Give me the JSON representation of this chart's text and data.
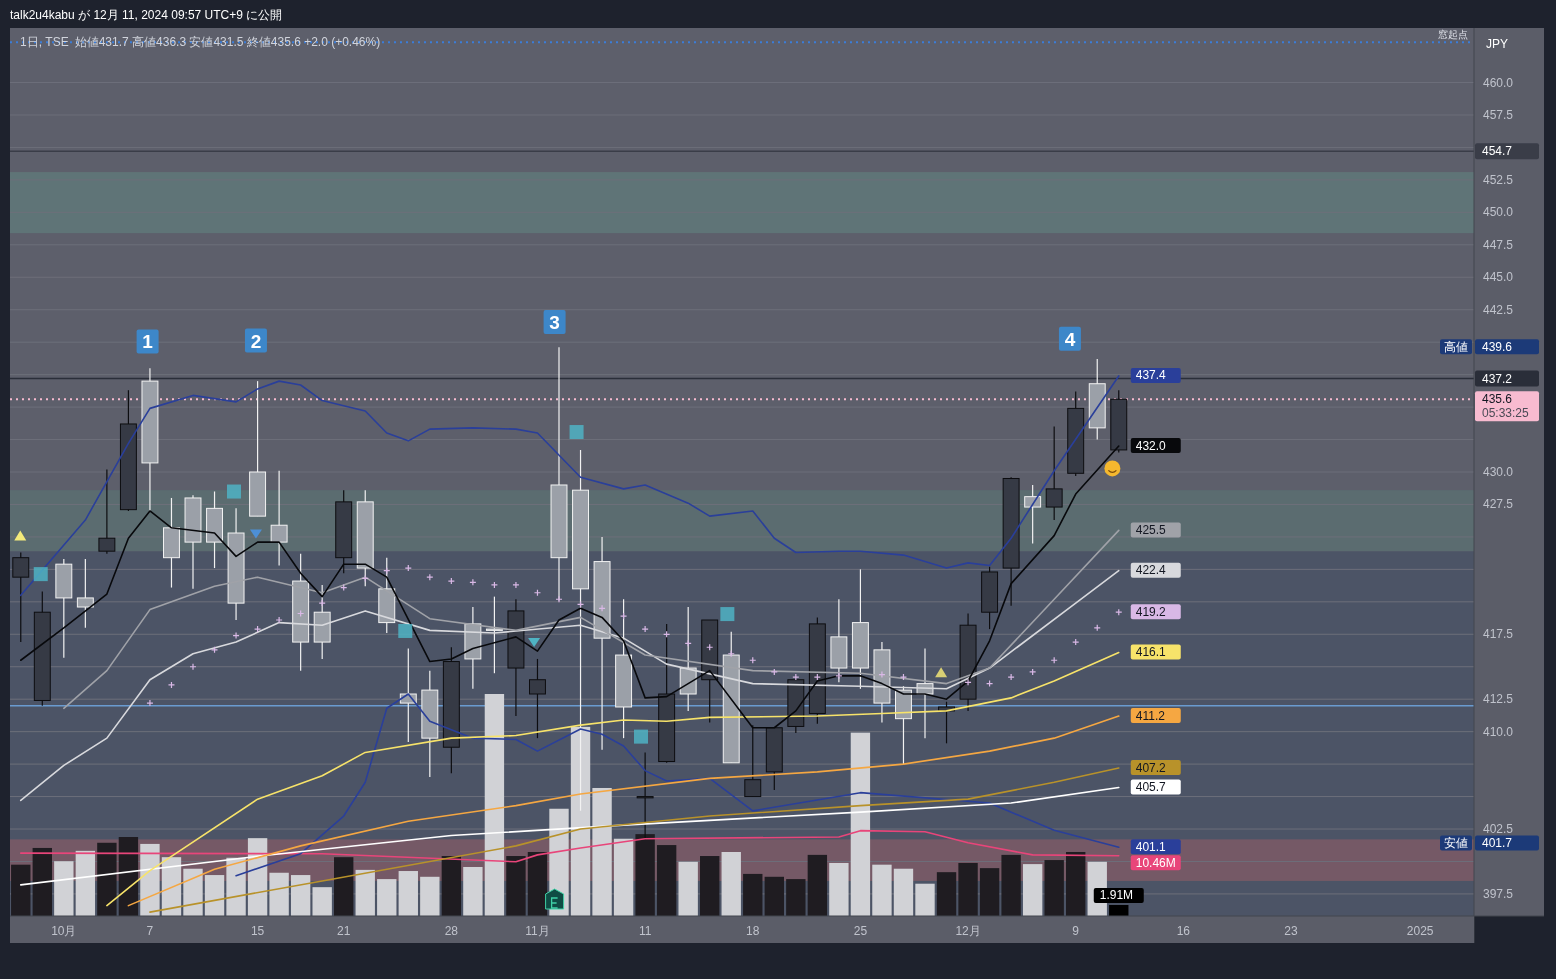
{
  "chart_data": {
    "type": "candlestick",
    "title": "1日, TSE",
    "subtitle": "始値431.7 高値436.3 安値431.5 終値435.6 +2.0 (+0.46%)",
    "categories": [
      null,
      null,
      "10月",
      null,
      null,
      null,
      "7",
      null,
      null,
      null,
      null,
      "15",
      null,
      null,
      null,
      "21",
      null,
      null,
      null,
      null,
      "28",
      null,
      null,
      null,
      "11月",
      null,
      null,
      null,
      null,
      "11",
      null,
      null,
      null,
      null,
      "18",
      null,
      null,
      null,
      null,
      "25",
      null,
      null,
      null,
      null,
      "12月",
      null,
      null,
      null,
      null,
      "9",
      null,
      null,
      null,
      null,
      "16",
      null,
      null,
      null,
      null,
      "23",
      null,
      null,
      null,
      null,
      null,
      "2025",
      null,
      null
    ],
    "ohlc": [
      [
        421.9,
        423.8,
        416.9,
        423.4
      ],
      [
        412.4,
        420.8,
        412.0,
        419.2
      ],
      [
        422.9,
        423.3,
        415.7,
        420.3
      ],
      [
        420.3,
        423.3,
        418.0,
        419.6
      ],
      [
        423.9,
        430.2,
        423.7,
        424.9
      ],
      [
        427.1,
        436.3,
        427.0,
        433.7
      ],
      [
        437.0,
        438.0,
        427.0,
        430.7
      ],
      [
        425.7,
        428.0,
        421.1,
        423.4
      ],
      [
        428.0,
        428.2,
        421.0,
        424.6
      ],
      [
        427.2,
        428.5,
        422.6,
        424.6
      ],
      [
        425.3,
        427.2,
        418.6,
        419.9
      ],
      [
        430.0,
        437.0,
        426.6,
        426.6
      ],
      [
        425.9,
        430.1,
        422.8,
        424.6
      ],
      [
        421.6,
        423.7,
        414.7,
        416.9
      ],
      [
        419.2,
        421.3,
        415.6,
        416.9
      ],
      [
        423.4,
        428.6,
        422.2,
        427.7
      ],
      [
        427.7,
        428.6,
        421.2,
        422.6
      ],
      [
        421.0,
        423.4,
        417.6,
        418.4
      ],
      [
        412.9,
        416.4,
        409.2,
        412.2
      ],
      [
        413.2,
        414.7,
        406.5,
        409.5
      ],
      [
        408.8,
        416.5,
        406.8,
        415.4
      ],
      [
        418.3,
        419.6,
        413.3,
        415.6
      ],
      [
        417.9,
        420.4,
        414.5,
        417.8
      ],
      [
        414.9,
        420.2,
        411.2,
        419.3
      ],
      [
        412.9,
        415.6,
        409.5,
        414.0
      ],
      [
        429.0,
        439.6,
        420.1,
        423.4
      ],
      [
        428.6,
        431.7,
        403.9,
        421.0
      ],
      [
        423.1,
        425.0,
        408.6,
        417.2
      ],
      [
        415.9,
        420.2,
        409.5,
        411.9
      ],
      [
        404.9,
        408.4,
        401.7,
        405.0
      ],
      [
        407.7,
        418.3,
        407.6,
        412.9
      ],
      [
        414.9,
        419.6,
        411.6,
        412.9
      ],
      [
        414.0,
        418.6,
        410.7,
        418.6
      ],
      [
        415.9,
        417.7,
        407.6,
        407.6
      ],
      [
        405.0,
        410.5,
        405.0,
        406.3
      ],
      [
        406.9,
        410.3,
        405.5,
        410.3
      ],
      [
        410.4,
        414.0,
        409.9,
        414.0
      ],
      [
        411.4,
        418.8,
        410.6,
        418.3
      ],
      [
        417.3,
        420.2,
        413.8,
        414.9
      ],
      [
        418.4,
        422.5,
        413.3,
        414.9
      ],
      [
        416.3,
        416.9,
        410.7,
        412.2
      ],
      [
        413.2,
        413.5,
        407.5,
        411.0
      ],
      [
        413.7,
        416.4,
        409.5,
        412.9
      ],
      [
        411.6,
        412.3,
        409.1,
        411.9
      ],
      [
        412.5,
        419.1,
        411.6,
        418.2
      ],
      [
        419.2,
        422.7,
        417.9,
        422.3
      ],
      [
        422.6,
        429.6,
        419.7,
        429.5
      ],
      [
        428.1,
        429.0,
        424.5,
        427.3
      ],
      [
        427.3,
        433.5,
        426.3,
        428.7
      ],
      [
        429.9,
        436.2,
        429.7,
        434.9
      ],
      [
        436.8,
        438.7,
        432.5,
        433.4
      ],
      [
        431.7,
        436.3,
        431.5,
        435.6
      ],
      null,
      null,
      null,
      null,
      null,
      null,
      null,
      null,
      null,
      null,
      null,
      null,
      null,
      null,
      null,
      null
    ],
    "series": [
      {
        "type": "bar",
        "axis": "y2",
        "values": [
          8.9,
          11.8,
          9.5,
          11.3,
          12.7,
          13.7,
          12.5,
          10.2,
          8.2,
          7.1,
          10.1,
          13.5,
          7.5,
          7.1,
          5.0,
          10.2,
          8.0,
          6.4,
          7.8,
          6.8,
          10.4,
          8.5,
          38.5,
          10.4,
          11.1,
          18.6,
          32.8,
          22.2,
          13.4,
          14.2,
          12.3,
          9.4,
          10.4,
          11.1,
          7.3,
          6.8,
          6.4,
          10.6,
          9.2,
          31.8,
          8.9,
          8.2,
          5.6,
          7.6,
          9.2,
          8.3,
          10.6,
          9.0,
          9.7,
          11.1,
          9.4,
          1.91,
          null,
          null,
          null,
          null,
          null,
          null,
          null,
          null,
          null,
          null,
          null,
          null,
          null,
          null,
          null,
          null
        ],
        "colors": [
          "#1f1c21",
          "#1f1c21",
          "#d1d2d6",
          "#d1d2d6",
          "#1f1c21",
          "#1f1c21",
          "#d1d2d6",
          "#d1d2d6",
          "#d1d2d6",
          "#d1d2d6",
          "#d1d2d6",
          "#d1d2d6",
          "#d1d2d6",
          "#d1d2d6",
          "#d1d2d6",
          "#1f1c21",
          "#d1d2d6",
          "#d1d2d6",
          "#d1d2d6",
          "#d1d2d6",
          "#1f1c21",
          "#d1d2d6",
          "#d1d2d6",
          "#1f1c21",
          "#1f1c21",
          "#d1d2d6",
          "#d1d2d6",
          "#d1d2d6",
          "#d1d2d6",
          "#1f1c21",
          "#1f1c21",
          "#d1d2d6",
          "#1f1c21",
          "#d1d2d6",
          "#1f1c21",
          "#1f1c21",
          "#1f1c21",
          "#1f1c21",
          "#d1d2d6",
          "#d1d2d6",
          "#d1d2d6",
          "#d1d2d6",
          "#d1d2d6",
          "#1f1c21",
          "#1f1c21",
          "#1f1c21",
          "#1f1c21",
          "#d1d2d6",
          "#1f1c21",
          "#1f1c21",
          "#d1d2d6",
          "#000000",
          null,
          null,
          null,
          null,
          null,
          null,
          null,
          null,
          null,
          null,
          null,
          null,
          null,
          null,
          null,
          null
        ],
        "value_labels": [
          null,
          null,
          null,
          null,
          null,
          null,
          null,
          null,
          null,
          null,
          null,
          null,
          null,
          null,
          null,
          null,
          null,
          null,
          null,
          null,
          null,
          null,
          null,
          null,
          null,
          null,
          null,
          null,
          null,
          null,
          null,
          null,
          null,
          null,
          null,
          null,
          null,
          null,
          null,
          null,
          null,
          null,
          null,
          null,
          null,
          null,
          null,
          null,
          null,
          null,
          null,
          "1.91M",
          null,
          null,
          null,
          null,
          null,
          null,
          null,
          null,
          null,
          null,
          null,
          null,
          null,
          null,
          null,
          null
        ]
      },
      {
        "type": "line",
        "axis": "y2",
        "color": "#e8457a",
        "values": [
          10.9,
          null,
          null,
          null,
          null,
          null,
          null,
          null,
          null,
          null,
          null,
          null,
          null,
          null,
          10.8,
          null,
          null,
          null,
          null,
          null,
          null,
          null,
          null,
          9.4,
          10.6,
          null,
          11.8,
          null,
          null,
          13.4,
          null,
          null,
          null,
          null,
          null,
          null,
          null,
          null,
          13.7,
          14.8,
          null,
          null,
          14.6,
          null,
          12.7,
          null,
          null,
          10.6,
          null,
          null,
          null,
          10.46,
          null,
          null,
          null,
          null,
          null,
          null,
          null,
          null,
          null,
          null,
          null,
          null,
          null,
          null,
          null,
          null
        ],
        "value_labels": [
          null,
          null,
          null,
          null,
          null,
          null,
          null,
          null,
          null,
          null,
          null,
          null,
          null,
          null,
          null,
          null,
          null,
          null,
          null,
          null,
          null,
          null,
          null,
          null,
          null,
          null,
          null,
          null,
          null,
          null,
          null,
          null,
          null,
          null,
          null,
          null,
          null,
          null,
          null,
          null,
          null,
          null,
          null,
          null,
          null,
          null,
          null,
          null,
          null,
          null,
          null,
          "10.46M",
          null,
          null,
          null,
          null,
          null,
          null,
          null,
          null,
          null,
          null,
          null,
          null,
          null,
          null,
          null,
          null
        ]
      },
      {
        "type": "line",
        "color": "#2a3f9a",
        "values": [
          420.5,
          null,
          null,
          426.3,
          null,
          432.2,
          434.9,
          null,
          435.9,
          null,
          435.4,
          436.4,
          437.0,
          436.7,
          435.5,
          null,
          434.7,
          433.0,
          432.4,
          433.3,
          null,
          433.4,
          null,
          433.3,
          433.0,
          null,
          429.6,
          null,
          428.7,
          429.0,
          null,
          427.6,
          426.6,
          null,
          427.0,
          424.9,
          423.8,
          null,
          423.9,
          423.9,
          null,
          423.6,
          null,
          422.6,
          423.0,
          422.8,
          424.9,
          null,
          430.1,
          null,
          null,
          437.4,
          null,
          null,
          null,
          null,
          null,
          null,
          null,
          null,
          null,
          null,
          null,
          null,
          null,
          null,
          null,
          null
        ],
        "value_labels": [
          null,
          null,
          null,
          null,
          null,
          null,
          null,
          null,
          null,
          null,
          null,
          null,
          null,
          null,
          null,
          null,
          null,
          null,
          null,
          null,
          null,
          null,
          null,
          null,
          null,
          null,
          null,
          null,
          null,
          null,
          null,
          null,
          null,
          null,
          null,
          null,
          null,
          null,
          null,
          null,
          null,
          null,
          null,
          null,
          null,
          null,
          null,
          null,
          null,
          null,
          null,
          "437.4",
          null,
          null,
          null,
          null,
          null,
          null,
          null,
          null,
          null,
          null,
          null,
          null,
          null,
          null,
          null,
          null
        ]
      },
      {
        "type": "line",
        "color": "#2a3f9a",
        "values": [
          null,
          null,
          null,
          null,
          null,
          null,
          null,
          null,
          null,
          null,
          398.9,
          null,
          null,
          400.6,
          null,
          403.5,
          406.1,
          411.8,
          412.9,
          410.8,
          null,
          409.5,
          null,
          409.4,
          408.5,
          null,
          410.2,
          409.8,
          408.9,
          407.0,
          406.2,
          null,
          406.4,
          null,
          403.9,
          null,
          null,
          null,
          null,
          405.3,
          null,
          null,
          null,
          null,
          null,
          404.5,
          null,
          null,
          402.4,
          null,
          null,
          401.1,
          null,
          null,
          null,
          null,
          null,
          null,
          null,
          null,
          null,
          null,
          null,
          null,
          null,
          null,
          null,
          null
        ],
        "value_labels": [
          null,
          null,
          null,
          null,
          null,
          null,
          null,
          null,
          null,
          null,
          null,
          null,
          null,
          null,
          null,
          null,
          null,
          null,
          null,
          null,
          null,
          null,
          null,
          null,
          null,
          null,
          null,
          null,
          null,
          null,
          null,
          null,
          null,
          null,
          null,
          null,
          null,
          null,
          null,
          null,
          null,
          null,
          null,
          null,
          null,
          null,
          null,
          null,
          null,
          null,
          null,
          "401.1",
          null,
          null,
          null,
          null,
          null,
          null,
          null,
          null,
          null,
          null,
          null,
          null,
          null,
          null,
          null,
          null
        ]
      },
      {
        "type": "line",
        "color": "#ffffff",
        "values": [
          398.2,
          null,
          null,
          null,
          null,
          null,
          null,
          null,
          null,
          null,
          null,
          400.4,
          null,
          null,
          null,
          null,
          null,
          null,
          null,
          null,
          402.0,
          null,
          null,
          null,
          null,
          null,
          null,
          null,
          402.8,
          null,
          null,
          null,
          null,
          null,
          null,
          null,
          null,
          null,
          null,
          403.8,
          null,
          null,
          null,
          null,
          null,
          null,
          404.5,
          null,
          null,
          null,
          null,
          405.7,
          null,
          null,
          null,
          null,
          null,
          null,
          null,
          null,
          null,
          null,
          null,
          null,
          null,
          null,
          null,
          null
        ],
        "value_labels": [
          null,
          null,
          null,
          null,
          null,
          null,
          null,
          null,
          null,
          null,
          null,
          null,
          null,
          null,
          null,
          null,
          null,
          null,
          null,
          null,
          null,
          null,
          null,
          null,
          null,
          null,
          null,
          null,
          null,
          null,
          null,
          null,
          null,
          null,
          null,
          null,
          null,
          null,
          null,
          null,
          null,
          null,
          null,
          null,
          null,
          null,
          null,
          null,
          null,
          null,
          null,
          "405.7",
          null,
          null,
          null,
          null,
          null,
          null,
          null,
          null,
          null,
          null,
          null,
          null,
          null,
          null,
          null,
          null
        ]
      },
      {
        "type": "line",
        "color": "#b8922a",
        "values": [
          null,
          null,
          null,
          null,
          null,
          null,
          396.1,
          null,
          null,
          null,
          null,
          null,
          null,
          null,
          398.5,
          null,
          null,
          null,
          null,
          null,
          null,
          null,
          null,
          401.2,
          null,
          null,
          402.5,
          null,
          null,
          null,
          null,
          null,
          403.5,
          null,
          null,
          null,
          null,
          null,
          null,
          404.3,
          null,
          null,
          null,
          null,
          404.8,
          null,
          null,
          null,
          406.1,
          null,
          null,
          407.2,
          null,
          null,
          null,
          null,
          null,
          null,
          null,
          null,
          null,
          null,
          null,
          null,
          null,
          null,
          null,
          null
        ],
        "value_labels": [
          null,
          null,
          null,
          null,
          null,
          null,
          null,
          null,
          null,
          null,
          null,
          null,
          null,
          null,
          null,
          null,
          null,
          null,
          null,
          null,
          null,
          null,
          null,
          null,
          null,
          null,
          null,
          null,
          null,
          null,
          null,
          null,
          null,
          null,
          null,
          null,
          null,
          null,
          null,
          null,
          null,
          null,
          null,
          null,
          null,
          null,
          null,
          null,
          null,
          null,
          null,
          "407.2",
          null,
          null,
          null,
          null,
          null,
          null,
          null,
          null,
          null,
          null,
          null,
          null,
          null,
          null,
          null,
          null
        ]
      },
      {
        "type": "line",
        "color": "#f5a742",
        "values": [
          null,
          null,
          null,
          null,
          null,
          396.6,
          null,
          null,
          null,
          399.4,
          null,
          null,
          null,
          401.2,
          null,
          null,
          null,
          null,
          403.1,
          null,
          null,
          null,
          null,
          404.3,
          null,
          null,
          405.2,
          null,
          null,
          null,
          null,
          null,
          406.4,
          null,
          null,
          null,
          null,
          406.9,
          null,
          null,
          null,
          407.5,
          null,
          null,
          null,
          408.5,
          null,
          null,
          409.5,
          null,
          null,
          411.2,
          null,
          null,
          null,
          null,
          null,
          null,
          null,
          null,
          null,
          null,
          null,
          null,
          null,
          null,
          null,
          null
        ],
        "value_labels": [
          null,
          null,
          null,
          null,
          null,
          null,
          null,
          null,
          null,
          null,
          null,
          null,
          null,
          null,
          null,
          null,
          null,
          null,
          null,
          null,
          null,
          null,
          null,
          null,
          null,
          null,
          null,
          null,
          null,
          null,
          null,
          null,
          null,
          null,
          null,
          null,
          null,
          null,
          null,
          null,
          null,
          null,
          null,
          null,
          null,
          null,
          null,
          null,
          null,
          null,
          null,
          "411.2",
          null,
          null,
          null,
          null,
          null,
          null,
          null,
          null,
          null,
          null,
          null,
          null,
          null,
          null,
          null,
          null
        ]
      },
      {
        "type": "line",
        "color": "#f7e36a",
        "values": [
          null,
          null,
          null,
          null,
          396.6,
          null,
          399.3,
          null,
          null,
          null,
          null,
          404.8,
          null,
          null,
          406.6,
          null,
          408.4,
          null,
          null,
          null,
          409.5,
          null,
          null,
          409.7,
          null,
          null,
          410.5,
          null,
          410.9,
          null,
          410.8,
          null,
          411.1,
          null,
          null,
          null,
          null,
          411.2,
          null,
          null,
          411.4,
          null,
          null,
          411.6,
          null,
          null,
          412.6,
          null,
          413.9,
          null,
          null,
          416.1,
          null,
          null,
          null,
          null,
          null,
          null,
          null,
          null,
          null,
          null,
          null,
          null,
          null,
          null,
          null,
          null
        ],
        "value_labels": [
          null,
          null,
          null,
          null,
          null,
          null,
          null,
          null,
          null,
          null,
          null,
          null,
          null,
          null,
          null,
          null,
          null,
          null,
          null,
          null,
          null,
          null,
          null,
          null,
          null,
          null,
          null,
          null,
          null,
          null,
          null,
          null,
          null,
          null,
          null,
          null,
          null,
          null,
          null,
          null,
          null,
          null,
          null,
          null,
          null,
          null,
          null,
          null,
          null,
          null,
          null,
          "416.1",
          null,
          null,
          null,
          null,
          null,
          null,
          null,
          null,
          null,
          null,
          null,
          null,
          null,
          null,
          null,
          null
        ]
      },
      {
        "type": "line",
        "color": "#d8d9dd",
        "values": [
          404.7,
          null,
          407.4,
          null,
          409.5,
          null,
          414.0,
          null,
          416.0,
          null,
          416.9,
          null,
          418.4,
          null,
          418.2,
          null,
          419.3,
          null,
          null,
          417.8,
          null,
          null,
          417.6,
          null,
          null,
          null,
          418.2,
          null,
          417.2,
          null,
          415.2,
          null,
          null,
          null,
          413.7,
          null,
          null,
          null,
          null,
          413.5,
          null,
          null,
          null,
          413.3,
          null,
          414.9,
          null,
          null,
          null,
          419.9,
          null,
          422.4,
          null,
          null,
          null,
          null,
          null,
          null,
          null,
          null,
          null,
          null,
          null,
          null,
          null,
          null,
          null,
          null
        ],
        "value_labels": [
          null,
          null,
          null,
          null,
          null,
          null,
          null,
          null,
          null,
          null,
          null,
          null,
          null,
          null,
          null,
          null,
          null,
          null,
          null,
          null,
          null,
          null,
          null,
          null,
          null,
          null,
          null,
          null,
          null,
          null,
          null,
          null,
          null,
          null,
          null,
          null,
          null,
          null,
          null,
          null,
          null,
          null,
          null,
          null,
          null,
          null,
          null,
          null,
          null,
          null,
          null,
          "422.4",
          null,
          null,
          null,
          null,
          null,
          null,
          null,
          null,
          null,
          null,
          null,
          null,
          null,
          null,
          null,
          null
        ]
      },
      {
        "type": "line",
        "color": "#a0a2a8",
        "values": [
          null,
          null,
          411.8,
          null,
          414.7,
          null,
          419.4,
          null,
          null,
          421.2,
          null,
          421.9,
          null,
          null,
          420.7,
          null,
          421.9,
          null,
          null,
          418.7,
          null,
          null,
          null,
          417.8,
          null,
          null,
          418.8,
          null,
          null,
          415.9,
          null,
          null,
          null,
          null,
          414.7,
          null,
          null,
          null,
          null,
          414.5,
          null,
          null,
          null,
          413.7,
          null,
          414.9,
          null,
          null,
          420.2,
          null,
          null,
          425.5,
          null,
          null,
          null,
          null,
          null,
          null,
          null,
          null,
          null,
          null,
          null,
          null,
          null,
          null,
          null,
          null
        ],
        "value_labels": [
          null,
          null,
          null,
          null,
          null,
          null,
          null,
          null,
          null,
          null,
          null,
          null,
          null,
          null,
          null,
          null,
          null,
          null,
          null,
          null,
          null,
          null,
          null,
          null,
          null,
          null,
          null,
          null,
          null,
          null,
          null,
          null,
          null,
          null,
          null,
          null,
          null,
          null,
          null,
          null,
          null,
          null,
          null,
          null,
          null,
          null,
          null,
          null,
          null,
          null,
          null,
          "425.5",
          null,
          null,
          null,
          null,
          null,
          null,
          null,
          null,
          null,
          null,
          null,
          null,
          null,
          null,
          null,
          null
        ]
      },
      {
        "type": "line",
        "color": "#08090c",
        "values": [
          415.5,
          null,
          418.0,
          null,
          420.6,
          424.9,
          427.0,
          425.7,
          null,
          425.3,
          423.5,
          424.6,
          424.6,
          422.2,
          420.4,
          422.9,
          422.9,
          421.9,
          null,
          415.4,
          415.6,
          416.4,
          null,
          417.3,
          416.2,
          418.6,
          419.5,
          418.8,
          417.0,
          412.6,
          412.7,
          null,
          414.7,
          null,
          410.3,
          410.3,
          411.6,
          413.9,
          414.3,
          414.3,
          413.7,
          412.9,
          412.9,
          412.5,
          413.9,
          417.0,
          421.4,
          null,
          425.1,
          428.3,
          null,
          432.0,
          null,
          null,
          null,
          null,
          null,
          null,
          null,
          null,
          null,
          null,
          null,
          null,
          null,
          null,
          null,
          null
        ],
        "value_labels": [
          null,
          null,
          null,
          null,
          null,
          null,
          null,
          null,
          null,
          null,
          null,
          null,
          null,
          null,
          null,
          null,
          null,
          null,
          null,
          null,
          null,
          null,
          null,
          null,
          null,
          null,
          null,
          null,
          null,
          null,
          null,
          null,
          null,
          null,
          null,
          null,
          null,
          null,
          null,
          null,
          null,
          null,
          null,
          null,
          null,
          null,
          null,
          null,
          null,
          null,
          null,
          "432.0",
          null,
          null,
          null,
          null,
          null,
          null,
          null,
          null,
          null,
          null,
          null,
          null,
          null,
          null,
          null,
          null
        ]
      },
      {
        "type": "scatter",
        "marker": "cross",
        "color": "#d9b8e6",
        "values": [
          null,
          null,
          null,
          null,
          null,
          null,
          412.2,
          413.6,
          415.0,
          416.3,
          417.4,
          417.9,
          418.6,
          419.1,
          419.9,
          421.1,
          421.8,
          422.4,
          422.6,
          421.9,
          421.6,
          421.5,
          421.3,
          421.3,
          420.7,
          420.2,
          419.8,
          419.5,
          418.9,
          417.9,
          417.5,
          416.8,
          416.5,
          416.0,
          415.5,
          414.6,
          414.2,
          414.2,
          414.3,
          null,
          414.4,
          414.2,
          null,
          null,
          413.8,
          413.7,
          414.2,
          414.6,
          415.5,
          416.9,
          418.0,
          419.2,
          null,
          null,
          null,
          null,
          null,
          null,
          null,
          null,
          null,
          null,
          null,
          null,
          null,
          null,
          null,
          null
        ],
        "value_labels": [
          null,
          null,
          null,
          null,
          null,
          null,
          null,
          null,
          null,
          null,
          null,
          null,
          null,
          null,
          null,
          null,
          null,
          null,
          null,
          null,
          null,
          null,
          null,
          null,
          null,
          null,
          null,
          null,
          null,
          null,
          null,
          null,
          null,
          null,
          null,
          null,
          null,
          null,
          null,
          null,
          null,
          null,
          null,
          null,
          null,
          null,
          null,
          null,
          null,
          null,
          null,
          "419.2",
          null,
          null,
          null,
          null,
          null,
          null,
          null,
          null,
          null,
          null,
          null,
          null,
          null,
          null,
          null,
          null
        ]
      }
    ],
    "ylim": [
      395.8,
      464.2
    ],
    "yticks": [
      397.5,
      {
        "value": 400,
        "label": null
      },
      402.5,
      {
        "value": 405,
        "label": null
      },
      {
        "value": 407.5,
        "label": null
      },
      {
        "value": 410,
        "label": "410.0"
      },
      412.5,
      {
        "value": 415,
        "label": null
      },
      417.5,
      {
        "value": 420,
        "label": null
      },
      {
        "value": 422.5,
        "label": null
      },
      {
        "value": 425,
        "label": null
      },
      427.5,
      {
        "value": 430,
        "label": "430.0"
      },
      {
        "value": 432.5,
        "label": null
      },
      {
        "value": 435,
        "label": null
      },
      {
        "value": 437.5,
        "label": null
      },
      {
        "value": 440,
        "label": null
      },
      442.5,
      {
        "value": 445,
        "label": "445.0"
      },
      447.5,
      {
        "value": 450,
        "label": "450.0"
      },
      452.5,
      {
        "value": 455,
        "label": null
      },
      457.5,
      {
        "value": 460,
        "label": "460.0"
      }
    ],
    "y2lim": [
      0,
      154
    ],
    "grid": "y",
    "bands": [
      {
        "axis": "y",
        "from": 395.8,
        "to": 423.9,
        "color": "#4a5366"
      },
      {
        "axis": "y",
        "from": 448.4,
        "to": 453.1,
        "color": "#5f7779"
      },
      {
        "axis": "y",
        "from": 423.9,
        "to": 428.6,
        "color": "#5b6e71"
      },
      {
        "axis": "y",
        "from": 398.5,
        "to": 401.7,
        "color": "#7a5a66"
      }
    ],
    "ref_lines": [
      {
        "axis": "y",
        "value": 463.1,
        "label": "窓起点",
        "color": "#3b7dd8",
        "line_style": "dotted"
      },
      {
        "axis": "y",
        "value": 454.7,
        "label": "454.7",
        "color": "#3a3d48",
        "line_style": "solid"
      },
      {
        "axis": "y",
        "value": 437.2,
        "label": "437.2",
        "color": "#2a2e39",
        "line_style": "solid"
      },
      {
        "axis": "y",
        "value": 435.6,
        "label": "435.6",
        "color": "#f8bbd0",
        "line_style": "dotted"
      },
      {
        "axis": "y",
        "value": 412.0,
        "label": null,
        "color": "#6a9bd0",
        "line_style": "solid"
      }
    ],
    "annotations": [
      "talk2u4kabu が 12月 11, 2024 09:57 UTC+9 に公開",
      "JPY",
      "05:33:25",
      "1",
      "2",
      "3",
      "4",
      "高値",
      "439.6",
      "安値",
      "401.7"
    ]
  }
}
